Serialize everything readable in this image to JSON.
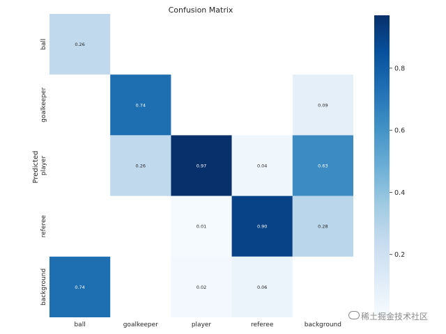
{
  "chart_data": {
    "type": "heatmap",
    "title": "Confusion Matrix",
    "ylabel": "Predicted",
    "xlabel": "",
    "x_categories": [
      "ball",
      "goalkeeper",
      "player",
      "referee",
      "background"
    ],
    "y_categories": [
      "ball",
      "goalkeeper",
      "player",
      "referee",
      "background"
    ],
    "values": [
      [
        0.26,
        null,
        null,
        null,
        null
      ],
      [
        null,
        0.74,
        null,
        null,
        0.09
      ],
      [
        null,
        0.26,
        0.97,
        0.04,
        0.63
      ],
      [
        null,
        null,
        0.01,
        0.9,
        0.28
      ],
      [
        0.74,
        null,
        0.02,
        0.06,
        null
      ]
    ],
    "value_labels": [
      [
        "0.26",
        "",
        "",
        "",
        ""
      ],
      [
        "",
        "0.74",
        "",
        "",
        "0.09"
      ],
      [
        "",
        "0.26",
        "0.97",
        "0.04",
        "0.63"
      ],
      [
        "",
        "",
        "0.01",
        "0.90",
        "0.28"
      ],
      [
        "0.74",
        "",
        "0.02",
        "0.06",
        ""
      ]
    ],
    "colormap": "Blues",
    "colorbar_ticks": [
      0.2,
      0.4,
      0.6,
      0.8
    ],
    "colorbar_tick_labels": [
      "0.2",
      "0.4",
      "0.6",
      "0.8"
    ],
    "colorbar_range": [
      0.0,
      0.97
    ]
  },
  "watermark": "稀土掘金技术社区"
}
